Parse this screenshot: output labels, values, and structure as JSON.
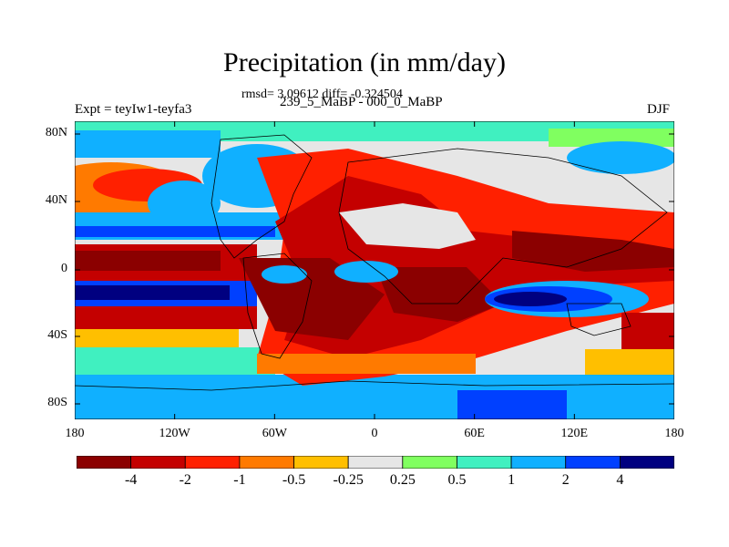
{
  "title": "Precipitation (in mm/day)",
  "stats": "rmsd= 3.09612 diff= -0.324504",
  "experiment": "Expt = teyIw1-teyfa3",
  "period": "239_5_MaBP - 000_0_MaBP",
  "season": "DJF",
  "y_ticks": [
    "80N",
    "40N",
    "0",
    "40S",
    "80S"
  ],
  "x_ticks": [
    "180",
    "120W",
    "60W",
    "0",
    "60E",
    "120E",
    "180"
  ],
  "colorbar": {
    "colors": [
      "#8b0000",
      "#c40000",
      "#ff2000",
      "#ff7a00",
      "#ffbf00",
      "#e6e6e6",
      "#80ff60",
      "#40f0c0",
      "#10b0ff",
      "#0040ff",
      "#000080"
    ],
    "labels": [
      "-4",
      "-2",
      "-1",
      "-0.5",
      "-0.25",
      "0.25",
      "0.5",
      "1",
      "2",
      "4"
    ]
  },
  "colors": {
    "strong_dry": "#8b0000",
    "dry": "#c40000",
    "moderate_dry": "#ff2000",
    "light_dry": "#ff7a00",
    "slight_dry": "#ffbf00",
    "neutral": "#e6e6e6",
    "slight_wet": "#80ff60",
    "light_wet": "#40f0c0",
    "moderate_wet": "#10b0ff",
    "wet": "#0040ff",
    "strong_wet": "#000080"
  }
}
